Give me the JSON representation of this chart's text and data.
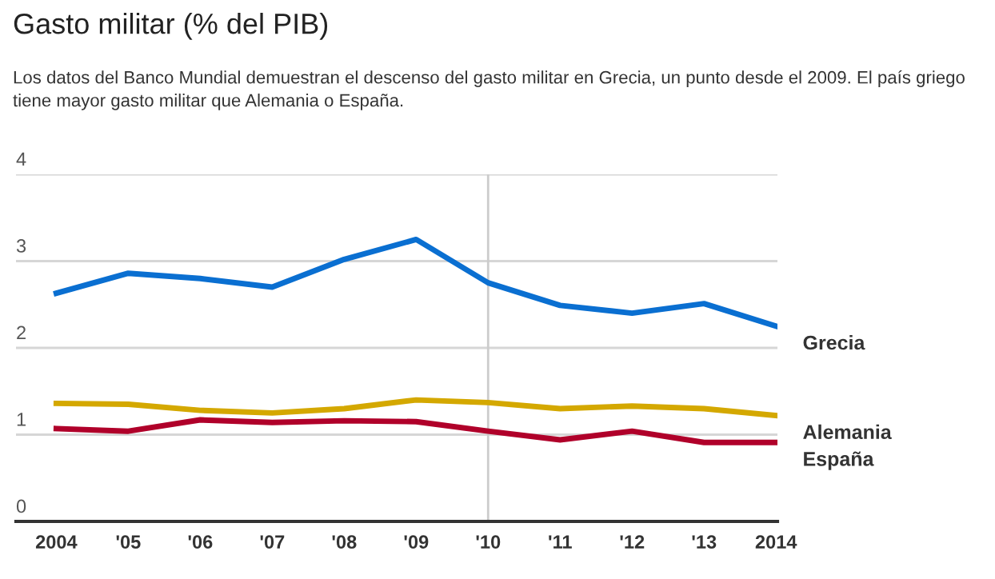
{
  "chart_data": {
    "type": "line",
    "title": "Gasto militar (% del PIB)",
    "subtitle": "Los datos del Banco Mundial demuestran el descenso del gasto militar en Grecia, un punto desde el 2009. El país griego tiene mayor gasto militar que Alemania o España.",
    "categories": [
      "2004",
      "'05",
      "'06",
      "'07",
      "'08",
      "'09",
      "'10",
      "'11",
      "'12",
      "'13",
      "2014"
    ],
    "series": [
      {
        "name": "Grecia",
        "color": "#0a6fd1",
        "values": [
          2.63,
          2.86,
          2.8,
          2.7,
          3.02,
          3.25,
          2.75,
          2.49,
          2.4,
          2.51,
          2.25
        ]
      },
      {
        "name": "Alemania",
        "color": "#d4a800",
        "values": [
          1.36,
          1.35,
          1.28,
          1.25,
          1.3,
          1.4,
          1.37,
          1.3,
          1.33,
          1.3,
          1.22
        ]
      },
      {
        "name": "España",
        "color": "#b0002a",
        "values": [
          1.07,
          1.04,
          1.17,
          1.14,
          1.16,
          1.15,
          1.04,
          0.94,
          1.04,
          0.91,
          0.91
        ]
      }
    ],
    "ylim": [
      0,
      4
    ],
    "yticks": [
      0,
      1,
      2,
      3,
      4
    ],
    "grid": "y",
    "legend": false,
    "marker": "none",
    "line_style": "solid",
    "ref_lines": [
      {
        "axis": "x",
        "value": "'10",
        "color": "#cccccc"
      }
    ]
  }
}
